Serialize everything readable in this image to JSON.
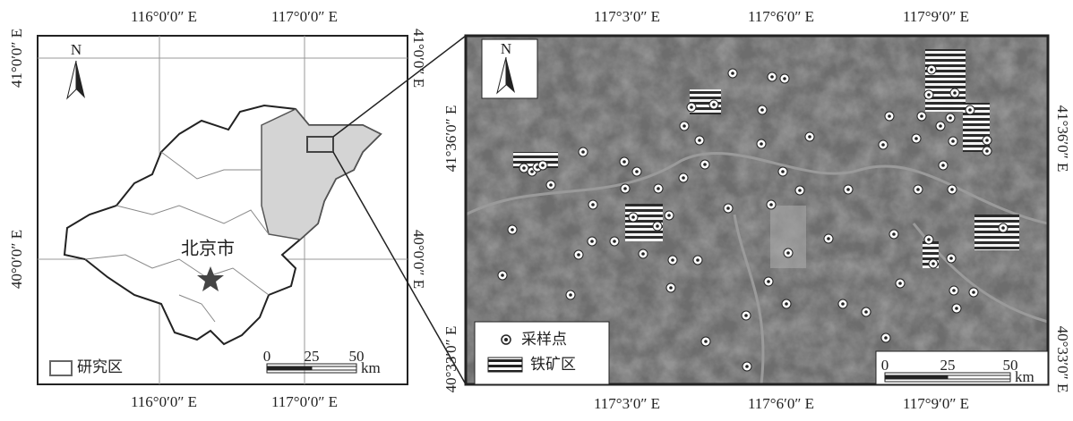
{
  "left_map": {
    "top_labels": [
      "116°0′0″ E",
      "117°0′0″ E"
    ],
    "bottom_labels": [
      "116°0′0″ E",
      "117°0′0″ E"
    ],
    "left_labels": [
      "41°0′0″ E",
      "40°0′0″ E"
    ],
    "right_labels": [
      "41°0′0″ E",
      "40°0′0″ E"
    ],
    "north": "N",
    "city_label": "北京市",
    "legend": "研究区",
    "scale": {
      "ticks": [
        "0",
        "25",
        "50"
      ],
      "unit": "km"
    }
  },
  "right_map": {
    "top_labels": [
      "117°3′0″ E",
      "117°6′0″ E",
      "117°9′0″ E"
    ],
    "bottom_labels": [
      "117°3′0″ E",
      "117°6′0″ E",
      "117°9′0″ E"
    ],
    "left_labels": [
      "41°36′0″ E",
      "40°33′0″ E"
    ],
    "right_labels": [
      "41°36′0″ E",
      "40°33′0″ E"
    ],
    "north": "N",
    "legend": [
      "采样点",
      "铁矿区"
    ],
    "scale": {
      "ticks": [
        "0",
        "25",
        "50"
      ],
      "unit": "km"
    }
  }
}
